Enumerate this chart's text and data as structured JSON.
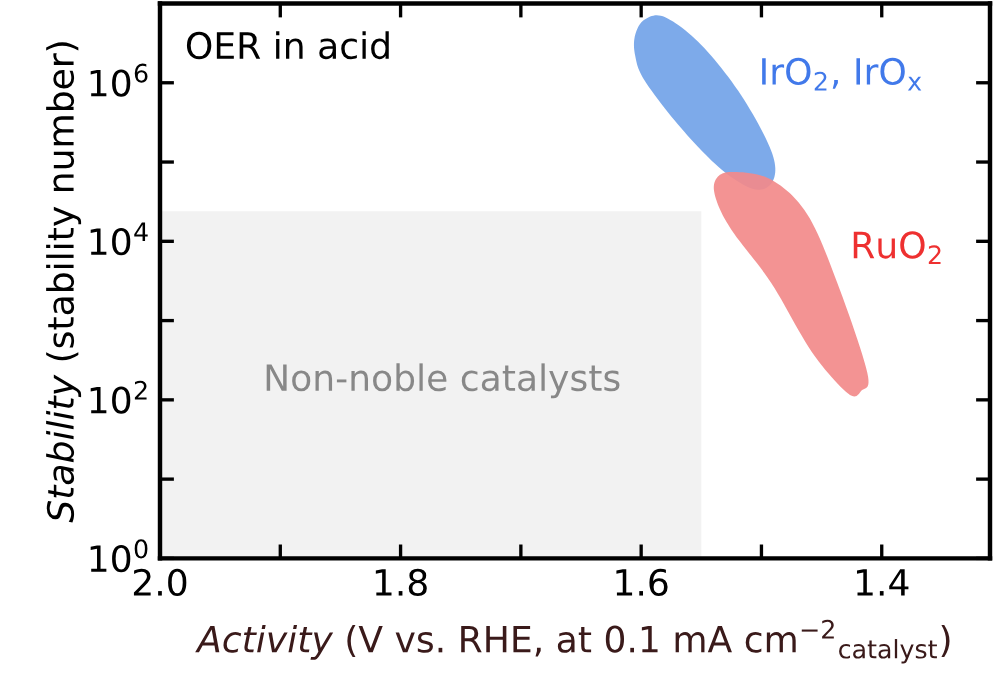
{
  "chart_data": {
    "type": "area",
    "xlabel": "Activity (V vs. RHE, at 0.1 mA cm$^{−2}$$_{catalyst}$)",
    "ylabel": "Stability (stability number)",
    "log": "y",
    "xlim": [
      2.0,
      1.31
    ],
    "xticks": [
      {
        "value": 2.0,
        "label": "2.0"
      },
      {
        "value": 1.9,
        "label": null
      },
      {
        "value": 1.8,
        "label": "1.8"
      },
      {
        "value": 1.7,
        "label": null
      },
      {
        "value": 1.6,
        "label": "1.6"
      },
      {
        "value": 1.5,
        "label": null
      },
      {
        "value": 1.4,
        "label": "1.4"
      }
    ],
    "ylim": [
      1,
      10000000
    ],
    "yticks": [
      {
        "value": 1,
        "label": "10$^{0}$"
      },
      {
        "value": 10,
        "label": null
      },
      {
        "value": 100,
        "label": "10$^{2}$"
      },
      {
        "value": 1000,
        "label": null
      },
      {
        "value": 10000,
        "label": "10$^{4}$"
      },
      {
        "value": 100000,
        "label": null
      },
      {
        "value": 1000000,
        "label": "10$^{6}$"
      }
    ],
    "series": [
      {
        "color": "#f2f2f2",
        "x": [
          2.0,
          1.55,
          1.55,
          2.0
        ],
        "values": [
          1,
          1,
          24000,
          24000
        ]
      },
      {
        "name": "IrO$_{2}$, IrO$_{x}$",
        "color": "#72a3e8",
        "x": [
          1.605,
          1.597,
          1.58,
          1.55,
          1.517,
          1.492,
          1.49,
          1.505,
          1.533,
          1.567,
          1.597,
          1.605
        ],
        "values": [
          4000000,
          6300000,
          6700000,
          3000000,
          700000,
          140000,
          60000,
          45000,
          80000,
          270000,
          1060000,
          2200000
        ]
      },
      {
        "name": "RuO$_{2}$",
        "color": "#f28a8a",
        "x": [
          1.538,
          1.525,
          1.492,
          1.462,
          1.437,
          1.412,
          1.417,
          1.428,
          1.458,
          1.492,
          1.525,
          1.538
        ],
        "values": [
          60000,
          75000,
          60000,
          22000,
          3000,
          220,
          130,
          120,
          400,
          3000,
          14000,
          35000
        ]
      }
    ],
    "annotations": [
      "OER in acid",
      "Non-noble catalysts"
    ],
    "legend": false,
    "grid": false
  }
}
